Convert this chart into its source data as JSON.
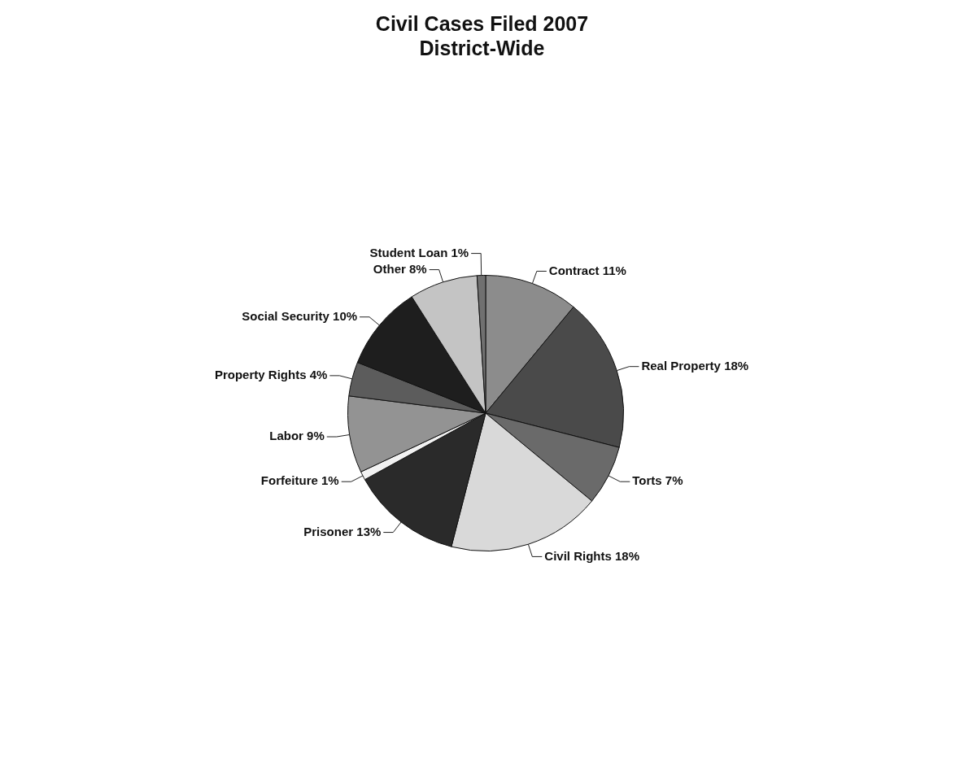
{
  "chart_data": {
    "type": "pie",
    "title": "Civil Cases Filed 2007",
    "subtitle": "District-Wide",
    "categories": [
      "Contract",
      "Real Property",
      "Torts",
      "Civil Rights",
      "Prisoner",
      "Forfeiture",
      "Labor",
      "Property Rights",
      "Social Security",
      "Other",
      "Student Loan"
    ],
    "values": [
      11,
      18,
      7,
      18,
      13,
      1,
      9,
      4,
      10,
      8,
      1
    ],
    "value_labels": [
      "11%",
      "18%",
      "7%",
      "18%",
      "13%",
      "1%",
      "9%",
      "4%",
      "10%",
      "8%",
      "1%"
    ],
    "colors": [
      "#8c8c8c",
      "#4a4a4a",
      "#6a6a6a",
      "#d9d9d9",
      "#2a2a2a",
      "#f2f2f2",
      "#939393",
      "#5c5c5c",
      "#1e1e1e",
      "#c4c4c4",
      "#707070"
    ],
    "legend": false
  }
}
